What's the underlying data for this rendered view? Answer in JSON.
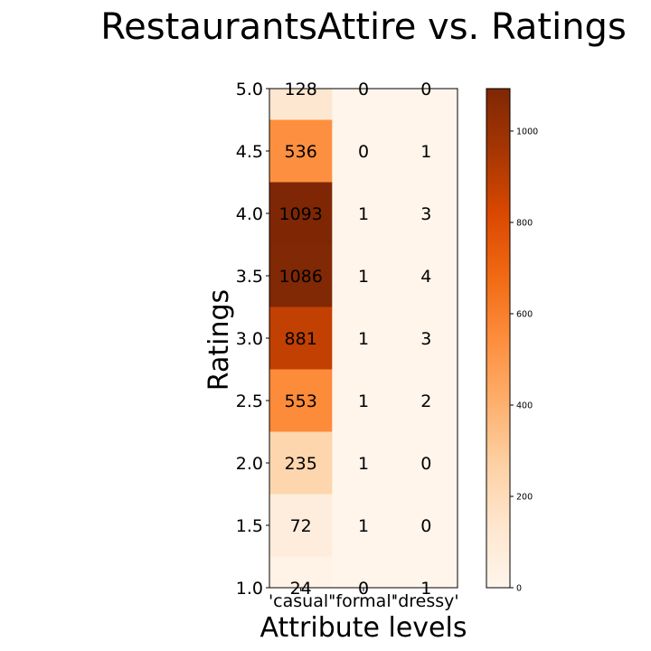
{
  "chart_data": {
    "type": "heatmap",
    "title": "RestaurantsAttire vs. Ratings",
    "xlabel": "Attribute levels",
    "ylabel": "Ratings",
    "x_categories": [
      "'casual'",
      "'formal'",
      "'dressy'"
    ],
    "y_categories": [
      "5.0",
      "4.5",
      "4.0",
      "3.5",
      "3.0",
      "2.5",
      "2.0",
      "1.5",
      "1.0"
    ],
    "y_ticks": [
      "5.0",
      "4.5",
      "4.0",
      "3.5",
      "3.0",
      "2.5",
      "2.0",
      "1.5",
      "1.0"
    ],
    "values": [
      [
        128,
        0,
        0
      ],
      [
        536,
        0,
        1
      ],
      [
        1093,
        1,
        3
      ],
      [
        1086,
        1,
        4
      ],
      [
        881,
        1,
        3
      ],
      [
        553,
        1,
        2
      ],
      [
        235,
        1,
        0
      ],
      [
        72,
        1,
        0
      ],
      [
        24,
        0,
        1
      ]
    ],
    "colormap": "Oranges",
    "vmin": 0,
    "vmax": 1093,
    "colorbar_ticks": [
      0,
      200,
      400,
      600,
      800,
      1000
    ],
    "grid": false,
    "colorbar": "right"
  }
}
